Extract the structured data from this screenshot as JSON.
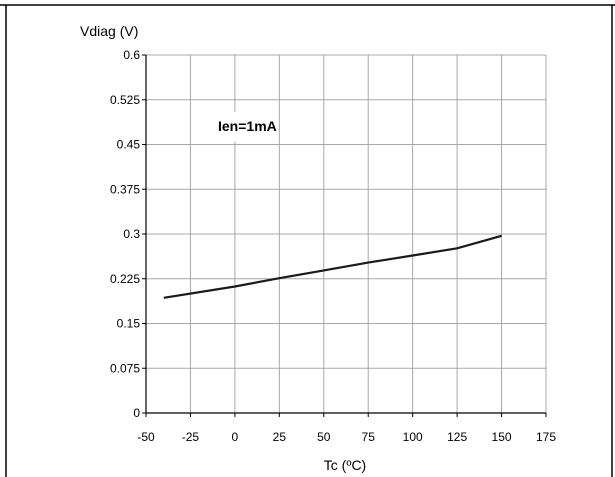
{
  "chart_data": {
    "type": "line",
    "title": "",
    "xlabel": "Tc (ºC)",
    "ylabel": "Vdiag (V)",
    "xlim": [
      -50,
      175
    ],
    "ylim": [
      0,
      0.6
    ],
    "x_ticks": [
      "-50",
      "-25",
      "0",
      "25",
      "50",
      "75",
      "100",
      "125",
      "150",
      "175"
    ],
    "y_ticks": [
      "0",
      "0.075",
      "0.15",
      "0.225",
      "0.3",
      "0.375",
      "0.45",
      "0.525",
      "0.6"
    ],
    "x_tick_values": [
      -50,
      -25,
      0,
      25,
      50,
      75,
      100,
      125,
      150,
      175
    ],
    "y_tick_values": [
      0,
      0.075,
      0.15,
      0.225,
      0.3,
      0.375,
      0.45,
      0.525,
      0.6
    ],
    "grid": true,
    "annotation": "Ien=1mA",
    "series": [
      {
        "x": [
          -40,
          0,
          25,
          50,
          75,
          100,
          125,
          150
        ],
        "values": [
          0.193,
          0.212,
          0.226,
          0.239,
          0.252,
          0.264,
          0.276,
          0.297
        ]
      }
    ],
    "colors": {
      "line": "#1a1a1a",
      "grid": "#a8a8a8",
      "axis": "#000000",
      "frame": "#000000"
    }
  }
}
